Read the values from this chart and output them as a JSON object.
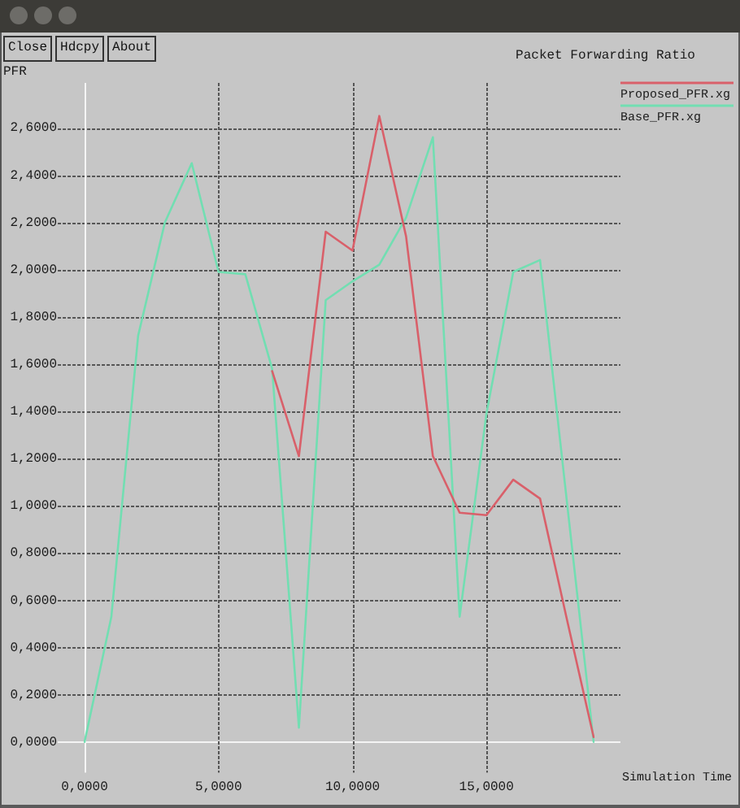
{
  "chart_data": {
    "type": "line",
    "title": "Packet Forwarding Ratio",
    "xlabel": "Simulation Time",
    "ylabel": "PFR",
    "annotations": [
      "Close",
      "Hdcpy",
      "About"
    ],
    "categories": [
      "0,0000",
      null,
      null,
      null,
      null,
      "5,0000",
      null,
      null,
      null,
      null,
      "10,0000",
      null,
      null,
      null,
      null,
      "15,0000",
      null,
      null,
      null,
      null
    ],
    "series": [
      {
        "name": "Proposed_PFR.xg",
        "color": "#d9606a",
        "values": [
          null,
          null,
          null,
          null,
          null,
          null,
          null,
          1.57,
          1.21,
          2.16,
          2.08,
          2.65,
          2.14,
          1.21,
          0.97,
          0.96,
          1.11,
          1.03,
          0.52,
          0.02
        ]
      },
      {
        "name": "Base_PFR.xg",
        "color": "#72deb2",
        "values": [
          0,
          0.53,
          1.72,
          2.2,
          2.45,
          1.99,
          1.98,
          1.58,
          0.06,
          1.87,
          1.95,
          2.02,
          2.22,
          2.56,
          0.53,
          1.39,
          1.99,
          2.04,
          1.02,
          0
        ]
      }
    ],
    "ylim": [
      -0.13,
      2.79
    ],
    "yticks": [
      {
        "value": 0,
        "label": "0,0000"
      },
      {
        "value": 0.2,
        "label": "0,2000"
      },
      {
        "value": 0.4,
        "label": "0,4000"
      },
      {
        "value": 0.6,
        "label": "0,6000"
      },
      {
        "value": 0.8,
        "label": "0,8000"
      },
      {
        "value": 1,
        "label": "1,0000"
      },
      {
        "value": 1.2,
        "label": "1,2000"
      },
      {
        "value": 1.4,
        "label": "1,4000"
      },
      {
        "value": 1.6,
        "label": "1,6000"
      },
      {
        "value": 1.8,
        "label": "1,8000"
      },
      {
        "value": 2,
        "label": "2,0000"
      },
      {
        "value": 2.2,
        "label": "2,2000"
      },
      {
        "value": 2.4,
        "label": "2,4000"
      },
      {
        "value": 2.6,
        "label": "2,6000"
      }
    ],
    "grid": true,
    "legend": "top right",
    "marker": "none",
    "line_style": "solid"
  }
}
